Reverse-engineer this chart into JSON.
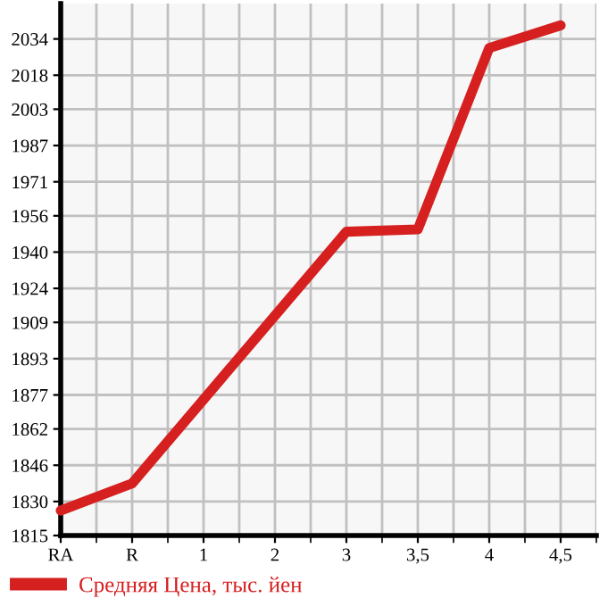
{
  "chart_data": {
    "type": "line",
    "categories": [
      "RA",
      "R",
      "1",
      "2",
      "3",
      "3,5",
      "4",
      "4,5"
    ],
    "series": [
      {
        "name": "Средняя Цена, тыс. йен",
        "color": "#d61f1f",
        "values": [
          1826,
          1838,
          1875,
          1912,
          1949,
          1950,
          2030,
          2040
        ]
      }
    ],
    "ylim": [
      1815,
      2049.6
    ],
    "yticks": [
      1815,
      1830,
      1846,
      1862,
      1877,
      1893,
      1909,
      1924,
      1940,
      1956,
      1971,
      1987,
      2003,
      2018,
      2034
    ],
    "grid": true,
    "legend": "bottom left",
    "marker": "none",
    "line_style": "solid"
  }
}
